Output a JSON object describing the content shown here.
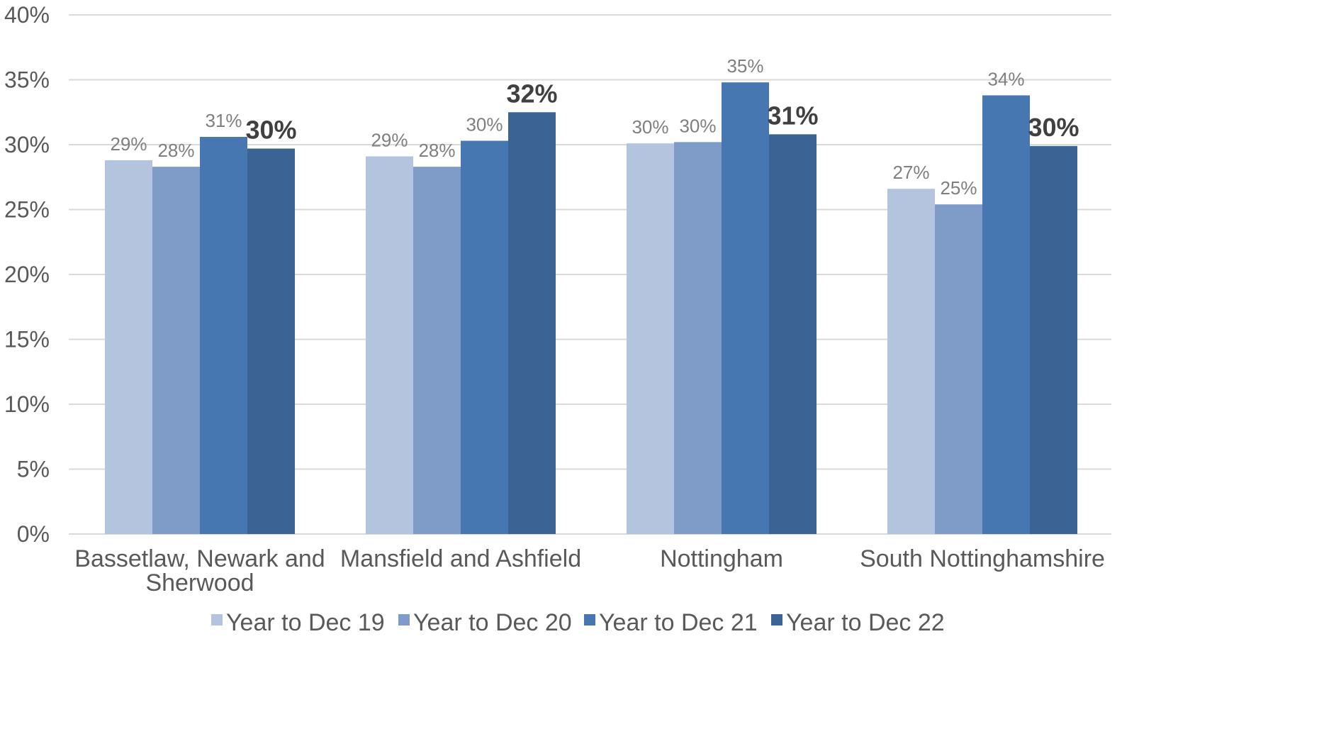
{
  "chart_data": {
    "type": "bar",
    "categories": [
      [
        "Bassetlaw, Newark and",
        "Sherwood"
      ],
      [
        "Mansfield and Ashfield"
      ],
      [
        "Nottingham"
      ],
      [
        "South Nottinghamshire"
      ]
    ],
    "series": [
      {
        "name": "Year to Dec 19",
        "color": "#b4c3de",
        "values": [
          28.8,
          29.1,
          30.1,
          26.6
        ],
        "labels": [
          "29%",
          "29%",
          "30%",
          "27%"
        ],
        "bold": false
      },
      {
        "name": "Year to Dec 20",
        "color": "#7f9cc8",
        "values": [
          28.3,
          28.3,
          30.2,
          25.4
        ],
        "labels": [
          "28%",
          "28%",
          "30%",
          "25%"
        ],
        "bold": false
      },
      {
        "name": "Year to Dec 21",
        "color": "#4677b0",
        "values": [
          30.6,
          30.3,
          34.8,
          33.8
        ],
        "labels": [
          "31%",
          "30%",
          "35%",
          "34%"
        ],
        "bold": false
      },
      {
        "name": "Year to Dec 22",
        "color": "#3b6494",
        "values": [
          29.7,
          32.5,
          30.8,
          29.9
        ],
        "labels": [
          "30%",
          "32%",
          "31%",
          "30%"
        ],
        "bold": true
      }
    ],
    "y_ticks": [
      "0%",
      "5%",
      "10%",
      "15%",
      "20%",
      "25%",
      "30%",
      "35%",
      "40%"
    ],
    "ylim": [
      0,
      40
    ],
    "y_step": 5,
    "grid": true,
    "legend_position": "bottom",
    "title": "",
    "xlabel": "",
    "ylabel": ""
  }
}
